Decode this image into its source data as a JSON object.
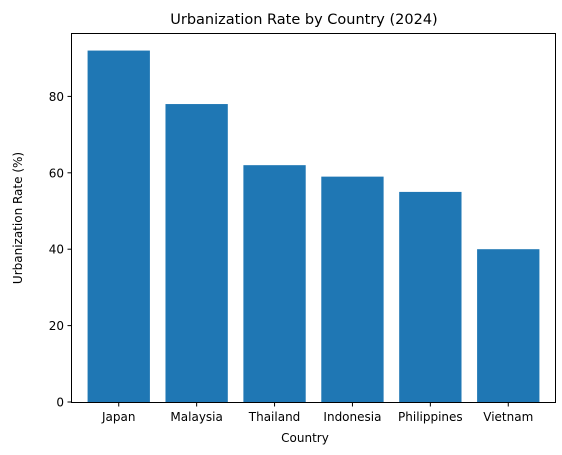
{
  "chart_data": {
    "type": "bar",
    "title": "Urbanization Rate by Country (2024)",
    "xlabel": "Country",
    "ylabel": "Urbanization Rate (%)",
    "categories": [
      "Japan",
      "Malaysia",
      "Thailand",
      "Indonesia",
      "Philippines",
      "Vietnam"
    ],
    "values": [
      92,
      78,
      62,
      59,
      55,
      40
    ],
    "ylim": [
      0,
      96.6
    ],
    "yticks": [
      0,
      20,
      40,
      60,
      80
    ],
    "ytick_labels": [
      "0",
      "20",
      "40",
      "60",
      "80"
    ],
    "bar_color": "#1f77b4",
    "grid": false,
    "legend": "none"
  }
}
